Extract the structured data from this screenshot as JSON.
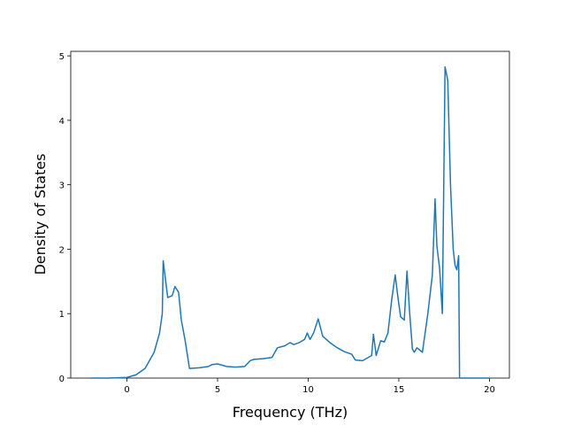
{
  "chart_data": {
    "type": "line",
    "xlabel": "Frequency (THz)",
    "ylabel": "Density of States",
    "color": "#1f77b4",
    "x": [
      -2,
      -1,
      0,
      0.5,
      1,
      1.5,
      1.8,
      1.95,
      2.0,
      2.25,
      2.5,
      2.65,
      2.85,
      3.0,
      3.2,
      3.45,
      4.0,
      4.5,
      4.7,
      5.0,
      5.5,
      6.0,
      6.5,
      6.8,
      7.0,
      7.5,
      8.0,
      8.3,
      8.7,
      9.0,
      9.2,
      9.5,
      9.8,
      9.95,
      10.1,
      10.3,
      10.55,
      10.8,
      11.2,
      11.6,
      12.0,
      12.4,
      12.6,
      13.0,
      13.5,
      13.6,
      13.75,
      14.0,
      14.2,
      14.4,
      14.6,
      14.8,
      14.95,
      15.1,
      15.3,
      15.45,
      15.6,
      15.75,
      15.85,
      16.0,
      16.3,
      16.6,
      16.85,
      17.0,
      17.1,
      17.25,
      17.4,
      17.55,
      17.7,
      17.85,
      18.0,
      18.1,
      18.2,
      18.3,
      18.35,
      19.0,
      20.0
    ],
    "values": [
      0,
      0,
      0.01,
      0.05,
      0.15,
      0.4,
      0.7,
      1.0,
      1.82,
      1.25,
      1.28,
      1.42,
      1.33,
      0.9,
      0.6,
      0.15,
      0.16,
      0.18,
      0.21,
      0.22,
      0.18,
      0.17,
      0.18,
      0.27,
      0.29,
      0.3,
      0.32,
      0.47,
      0.5,
      0.55,
      0.52,
      0.55,
      0.6,
      0.7,
      0.6,
      0.7,
      0.92,
      0.65,
      0.55,
      0.47,
      0.41,
      0.37,
      0.28,
      0.27,
      0.35,
      0.68,
      0.35,
      0.58,
      0.56,
      0.7,
      1.2,
      1.6,
      1.25,
      0.95,
      0.9,
      1.66,
      1.0,
      0.45,
      0.4,
      0.47,
      0.4,
      1.0,
      1.6,
      2.78,
      2.05,
      1.7,
      1.0,
      4.83,
      4.62,
      3.0,
      2.0,
      1.75,
      1.68,
      1.9,
      0,
      0,
      0
    ],
    "xlim": [
      -3.1,
      21.1
    ],
    "ylim": [
      0,
      5.07
    ],
    "xticks": [
      0,
      5,
      10,
      15,
      20
    ],
    "yticks": [
      0,
      1,
      2,
      3,
      4,
      5
    ]
  }
}
